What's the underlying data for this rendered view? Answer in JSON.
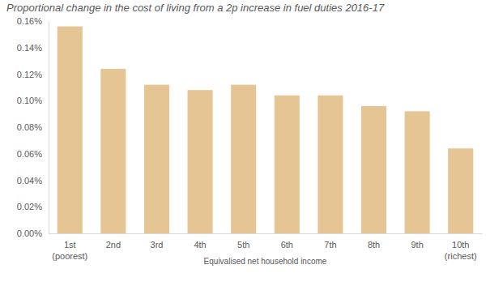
{
  "chart_data": {
    "type": "bar",
    "title": "Proportional change in the cost of living from a 2p increase in fuel duties 2016-17",
    "x_label": "Equivalised net household income",
    "categories": [
      "1st\n(poorest)",
      "2nd",
      "3rd",
      "4th",
      "5th",
      "6th",
      "7th",
      "8th",
      "9th",
      "10th\n(richest)"
    ],
    "values": [
      0.156,
      0.124,
      0.112,
      0.108,
      0.112,
      0.104,
      0.104,
      0.096,
      0.092,
      0.064
    ],
    "color": "#e6c594",
    "ylim": [
      0,
      0.16
    ],
    "yticks": [
      {
        "value": 0,
        "label": "0.00%"
      },
      {
        "value": 0.02,
        "label": "0.02%"
      },
      {
        "value": 0.04,
        "label": "0.04%"
      },
      {
        "value": 0.06,
        "label": "0.06%"
      },
      {
        "value": 0.08,
        "label": "0.08%"
      },
      {
        "value": 0.1,
        "label": "0.10%"
      },
      {
        "value": 0.12,
        "label": "0.12%"
      },
      {
        "value": 0.14,
        "label": "0.14%"
      },
      {
        "value": 0.16,
        "label": "0.16%"
      }
    ],
    "grid": false
  }
}
